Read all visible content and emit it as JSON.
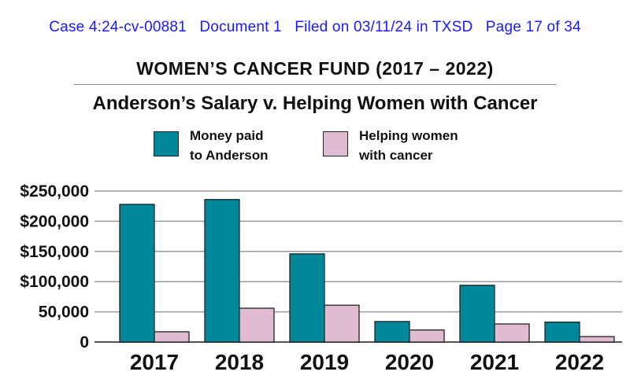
{
  "header": {
    "text": "Case 4:24-cv-00881   Document 1   Filed on 03/11/24 in TXSD   Page 17 of 34"
  },
  "heading": "WOMEN’S CANCER FUND (2017 – 2022)",
  "colors": {
    "series_1": "#00879a",
    "series_2": "#dfbcd2",
    "header_text": "#1a1aff"
  },
  "chart_data": {
    "type": "bar",
    "title": "Anderson’s Salary v. Helping Women with Cancer",
    "xlabel": "",
    "ylabel": "",
    "categories": [
      "2017",
      "2018",
      "2019",
      "2020",
      "2021",
      "2022"
    ],
    "series": [
      {
        "name": "Money paid to Anderson",
        "legend_lines": [
          "Money paid",
          "to Anderson"
        ],
        "values": [
          228000,
          236000,
          146000,
          34000,
          94000,
          33000
        ]
      },
      {
        "name": "Helping women with cancer",
        "legend_lines": [
          "Helping women",
          "with cancer"
        ],
        "values": [
          17000,
          56000,
          61000,
          20000,
          30000,
          9000
        ]
      }
    ],
    "ylim": [
      0,
      250000
    ],
    "yticks": [
      0,
      50000,
      100000,
      150000,
      200000,
      250000
    ],
    "ytick_labels": [
      "0",
      "50,000",
      "$100,000",
      "$150,000",
      "$200,000",
      "$250,000"
    ],
    "grid": true,
    "legend_position": "top"
  }
}
